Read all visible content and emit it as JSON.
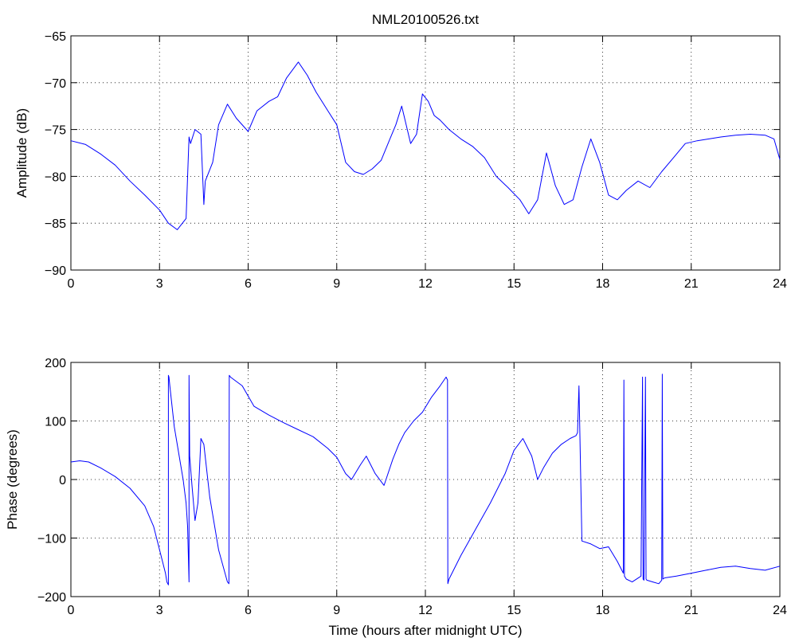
{
  "chart_data": [
    {
      "type": "line",
      "title": "NML20100526.txt",
      "xlabel": "",
      "ylabel": "Amplitude (dB)",
      "xlim": [
        0,
        24
      ],
      "ylim": [
        -90,
        -65
      ],
      "xticks": [
        0,
        3,
        6,
        9,
        12,
        15,
        18,
        21,
        24
      ],
      "yticks": [
        -90,
        -85,
        -80,
        -75,
        -70,
        -65
      ],
      "xtick_labels": [
        "0",
        "3",
        "6",
        "9",
        "12",
        "15",
        "18",
        "21",
        "24"
      ],
      "ytick_labels": [
        "−90",
        "−85",
        "−80",
        "−75",
        "−70",
        "−65"
      ],
      "grid": true,
      "color": "#0000ff",
      "series": [
        {
          "x": [
            0,
            0.5,
            1,
            1.5,
            2,
            2.5,
            3,
            3.3,
            3.6,
            3.9,
            4.0,
            4.05,
            4.2,
            4.4,
            4.5,
            4.55,
            4.8,
            5.0,
            5.3,
            5.6,
            6.0,
            6.3,
            6.7,
            7.0,
            7.3,
            7.7,
            8.0,
            8.3,
            8.7,
            9.0,
            9.3,
            9.6,
            9.9,
            10.2,
            10.5,
            10.8,
            11.0,
            11.2,
            11.5,
            11.7,
            11.9,
            12.1,
            12.3,
            12.5,
            12.8,
            13.2,
            13.6,
            14.0,
            14.4,
            14.8,
            15.2,
            15.5,
            15.8,
            16.1,
            16.4,
            16.7,
            17.0,
            17.3,
            17.6,
            17.9,
            18.2,
            18.5,
            18.8,
            19.2,
            19.6,
            20.0,
            20.4,
            20.8,
            21.2,
            21.6,
            22.0,
            22.5,
            23.0,
            23.5,
            23.8,
            24
          ],
          "y": [
            -76.2,
            -76.6,
            -77.6,
            -78.8,
            -80.5,
            -82.0,
            -83.6,
            -85.0,
            -85.7,
            -84.5,
            -75.8,
            -76.5,
            -75.0,
            -75.5,
            -83.0,
            -80.5,
            -78.5,
            -74.5,
            -72.3,
            -73.8,
            -75.2,
            -73.0,
            -72.0,
            -71.5,
            -69.5,
            -67.8,
            -69.2,
            -71.0,
            -73.0,
            -74.5,
            -78.5,
            -79.5,
            -79.8,
            -79.2,
            -78.3,
            -76.0,
            -74.5,
            -72.5,
            -76.5,
            -75.5,
            -71.2,
            -72.0,
            -73.5,
            -74.0,
            -75.0,
            -76.0,
            -76.8,
            -78.0,
            -80.0,
            -81.2,
            -82.5,
            -84.0,
            -82.5,
            -77.5,
            -81.0,
            -83.0,
            -82.5,
            -79.0,
            -76.0,
            -78.5,
            -82.0,
            -82.5,
            -81.5,
            -80.5,
            -81.2,
            -79.5,
            -78.0,
            -76.5,
            -76.2,
            -76.0,
            -75.8,
            -75.6,
            -75.5,
            -75.6,
            -76.0,
            -78.2
          ]
        }
      ]
    },
    {
      "type": "line",
      "title": "",
      "xlabel": "Time (hours after midnight UTC)",
      "ylabel": "Phase (degrees)",
      "xlim": [
        0,
        24
      ],
      "ylim": [
        -200,
        200
      ],
      "xticks": [
        0,
        3,
        6,
        9,
        12,
        15,
        18,
        21,
        24
      ],
      "yticks": [
        -200,
        -100,
        0,
        100,
        200
      ],
      "xtick_labels": [
        "0",
        "3",
        "6",
        "9",
        "12",
        "15",
        "18",
        "21",
        "24"
      ],
      "ytick_labels": [
        "−200",
        "−100",
        "0",
        "100",
        "200"
      ],
      "grid": true,
      "color": "#0000ff",
      "series": [
        {
          "x": [
            0,
            0.3,
            0.6,
            1.0,
            1.5,
            2.0,
            2.5,
            2.8,
            3.0,
            3.2,
            3.25,
            3.3,
            3.3,
            3.32,
            3.35,
            3.5,
            3.7,
            3.8,
            3.9,
            3.95,
            4.0,
            4.0,
            4.02,
            4.1,
            4.2,
            4.3,
            4.4,
            4.5,
            4.7,
            5.0,
            5.3,
            5.35,
            5.36,
            5.4,
            5.8,
            6.2,
            6.7,
            7.2,
            7.7,
            8.2,
            8.7,
            9.0,
            9.3,
            9.5,
            9.8,
            10.0,
            10.3,
            10.6,
            10.9,
            11.1,
            11.3,
            11.6,
            11.9,
            12.2,
            12.5,
            12.7,
            12.75,
            12.76,
            12.8,
            13.2,
            13.7,
            14.2,
            14.7,
            15.0,
            15.3,
            15.6,
            15.8,
            16.0,
            16.3,
            16.6,
            16.9,
            17.1,
            17.15,
            17.2,
            17.3,
            17.6,
            17.9,
            18.2,
            18.5,
            18.7,
            18.72,
            18.74,
            18.8,
            19.0,
            19.3,
            19.35,
            19.37,
            19.4,
            19.45,
            19.47,
            19.5,
            19.7,
            19.9,
            20.0,
            20.02,
            20.04,
            20.1,
            20.5,
            21.0,
            21.5,
            22.0,
            22.5,
            23.0,
            23.5,
            24
          ],
          "y": [
            30,
            32,
            30,
            20,
            5,
            -15,
            -45,
            -80,
            -120,
            -160,
            -175,
            -180,
            178,
            175,
            160,
            90,
            30,
            0,
            -40,
            -80,
            -175,
            178,
            40,
            -10,
            -70,
            -40,
            70,
            60,
            -30,
            -120,
            -175,
            -178,
            178,
            175,
            160,
            125,
            110,
            97,
            85,
            73,
            53,
            38,
            10,
            0,
            25,
            40,
            10,
            -10,
            35,
            60,
            80,
            100,
            115,
            140,
            160,
            175,
            170,
            -178,
            -170,
            -130,
            -85,
            -40,
            10,
            50,
            70,
            40,
            0,
            20,
            45,
            60,
            70,
            75,
            80,
            160,
            -105,
            -110,
            -118,
            -115,
            -140,
            -160,
            170,
            -165,
            -170,
            -175,
            -165,
            175,
            -170,
            -172,
            175,
            -170,
            -172,
            -175,
            -178,
            -172,
            180,
            -170,
            -168,
            -165,
            -160,
            -155,
            -150,
            -148,
            -152,
            -155,
            -148
          ]
        }
      ]
    }
  ]
}
